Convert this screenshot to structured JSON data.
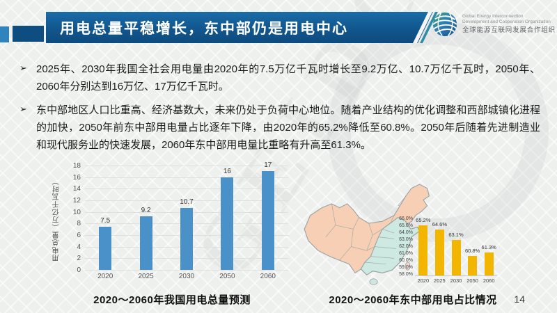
{
  "slide": {
    "title": "用电总量平稳增长，东中部仍是用电中心",
    "page_number": "14",
    "watermark": "GEIDCO"
  },
  "logo": {
    "en_line1": "Global Energy Interconnection",
    "en_line2": "Development and Cooperation Organization",
    "cn_line": "全球能源互联网发展合作组织"
  },
  "bullets": [
    {
      "marker": "➢",
      "text": "2025年、2030年我国全社会用电量由2020年的7.5万亿千瓦时增长至9.2万亿、10.7万亿千瓦时，2050年、2060年分别达到16万亿、17万亿千瓦时。"
    },
    {
      "marker": "➢",
      "text": "东中部地区人口比重高、经济基数大，未来仍处于负荷中心地位。随着产业结构的优化调整和西部城镇化进程的加快，2050年前东中部用电量占比逐年下降，由2020年的65.2%降低至60.8%。2050年后随着先进制造业和现代服务业的快速发展，2060年东中部用电量比重略有升高至61.3%。"
    }
  ],
  "chart_data": [
    {
      "type": "bar",
      "title": "2020～2060年我国用电总量预测",
      "categories": [
        "2020",
        "2025",
        "2030",
        "2050",
        "2060"
      ],
      "values": [
        7.5,
        9.2,
        10.7,
        16,
        17
      ],
      "labels": [
        "7.5",
        "9.2",
        "10.7",
        "16",
        "17"
      ],
      "xlabel": "",
      "ylabel": "用电总量（万亿千瓦时）",
      "ylim": [
        0,
        18
      ],
      "yticks": [
        0,
        2,
        4,
        6,
        8,
        10,
        12,
        14,
        16,
        18
      ],
      "grid": true,
      "legend": "none",
      "bar_color": "#4a90c9"
    },
    {
      "type": "bar",
      "title": "2020～2060年东中部用电占比情况",
      "categories": [
        "2020",
        "2025",
        "2030",
        "2050",
        "2060"
      ],
      "values": [
        65.2,
        64.6,
        63.1,
        60.8,
        61.3
      ],
      "labels": [
        "65.2%",
        "64.6%",
        "63.1%",
        "60.8%",
        "61.3%"
      ],
      "xlabel": "",
      "ylabel": "",
      "ylim": [
        58,
        66
      ],
      "ytick_labels": [
        "66.0%",
        "65.0%",
        "64.0%",
        "63.0%",
        "62.0%",
        "61.0%",
        "60.0%",
        "59.0%",
        "58.0%"
      ],
      "grid": false,
      "legend": "none",
      "bar_color": "#f2b600"
    }
  ],
  "map": {
    "west_region_color": "#f6cfb5",
    "east_central_region_color": "#cde9e2",
    "border_color": "#9aa3a3"
  }
}
